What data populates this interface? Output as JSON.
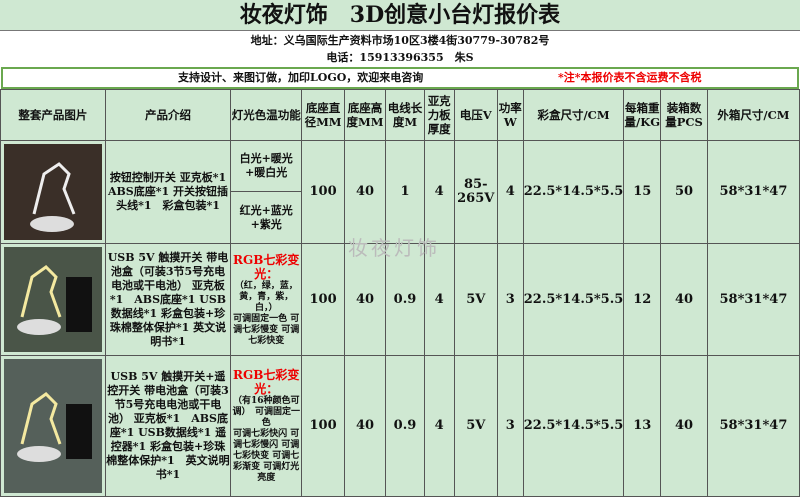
{
  "title": "妆夜灯饰　3D创意小台灯报价表",
  "address": "地址：义乌国际生产资料市场10区3楼4街30779-30782号",
  "phone": "电话：15913396355　朱S",
  "slogan": "支持设计、来图订做，加印LOGO，欢迎来电咨询",
  "notice": "*注*本报价表不含运费不含税",
  "watermark": "妆夜灯饰",
  "headers": [
    "整套产品图片",
    "产品介绍",
    "灯光色温功能",
    "底座直径MM",
    "底座高度MM",
    "电线长度M",
    "亚克力板厚度",
    "电压V",
    "功率W",
    "彩盒尺寸/CM",
    "每箱重量/KG",
    "装箱数量PCS",
    "外箱尺寸/CM"
  ],
  "rows": [
    {
      "intro": "按钮控制开关 亚克板*1　ABS底座*1 开关按钮插头线*1　彩盒包装*1",
      "light_a": "白光+暖光+暖白光",
      "light_b": "红光+蓝光+紫光",
      "dia": "100",
      "height": "40",
      "wire": "1",
      "thick": "4",
      "volt": "85-265V",
      "power": "4",
      "box": "22.5*14.5*5.5",
      "weight": "15",
      "qty": "50",
      "carton": "58*31*47"
    },
    {
      "intro": "USB 5V 触摸开关 带电池盒（可装3节5号充电电池或干电池） 亚克板*1　ABS底座*1 USB数据线*1 彩盒包装+珍珠棉整体保护*1 英文说明书*1",
      "light_title": "RGB七彩变光：",
      "light_desc": "（红，绿，蓝，黄，青，紫，白，）",
      "light_modes": "可调固定一色 可调七彩慢变 可调七彩快变",
      "dia": "100",
      "height": "40",
      "wire": "0.9",
      "thick": "4",
      "volt": "5V",
      "power": "3",
      "box": "22.5*14.5*5.5",
      "weight": "12",
      "qty": "40",
      "carton": "58*31*47"
    },
    {
      "intro": "USB 5V 触摸开关+遥控开关 带电池盒（可装3节5号充电电池或干电池） 亚克板*1　ABS底座*1 USB数据线*1 遥控器*1 彩盒包装+珍珠棉整体保护*1　英文说明书*1",
      "light_title": "RGB七彩变光：",
      "light_desc": "（有16种颜色可调）　可调固定一色",
      "light_modes": "可调七彩快闪 可调七彩慢闪 可调七彩快变 可调七彩渐变 可调灯光亮度",
      "dia": "100",
      "height": "40",
      "wire": "0.9",
      "thick": "4",
      "volt": "5V",
      "power": "3",
      "box": "22.5*14.5*5.5",
      "weight": "13",
      "qty": "40",
      "carton": "58*31*47"
    }
  ]
}
